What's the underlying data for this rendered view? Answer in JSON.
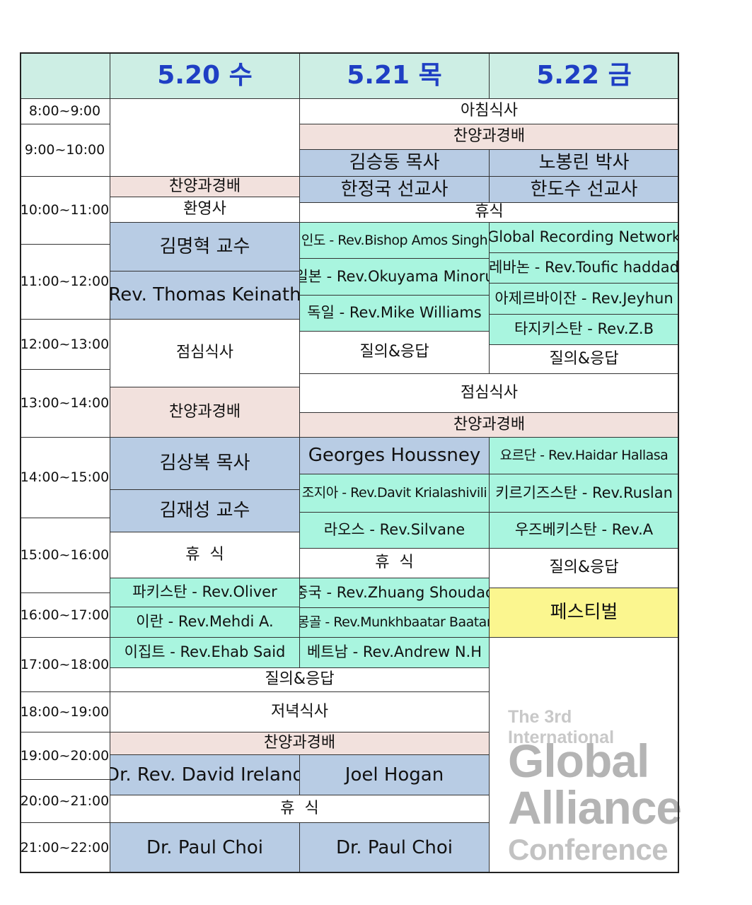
{
  "header": {
    "day1": "5.20 수",
    "day2": "5.21 목",
    "day3": "5.22 금"
  },
  "times": [
    "8:00~9:00",
    "9:00~10:00",
    "10:00~11:00",
    "11:00~12:00",
    "12:00~13:00",
    "13:00~14:00",
    "14:00~15:00",
    "15:00~16:00",
    "16:00~17:00",
    "17:00~18:00",
    "18:00~19:00",
    "19:00~20:00",
    "20:00~21:00",
    "21:00~22:00"
  ],
  "sessions": {
    "breakfast": "아침식사",
    "worship_d23_morning": "찬양과경배",
    "d2_kim_seungdong": "김승동 목사",
    "d3_no_bongrin": "노봉린 박사",
    "d1_worship_10": "찬양과경배",
    "d2_han_jeongguk": "한정국 선교사",
    "d3_han_dosu": "한도수 선교사",
    "d1_welcome": "환영사",
    "d23_break_1030": "휴식",
    "d1_kim_myeonghyeok": "김명혁 교수",
    "d2_india": "인도 - Rev.Bishop Amos Singh",
    "d3_grn": "Global Recording Network",
    "d3_lebanon": "레바논 - Rev.Toufic haddad",
    "d1_thomas_keinath": "Rev. Thomas Keinath",
    "d2_japan": "일본 - Rev.Okuyama Minoru",
    "d3_azerbaijan": "아제르바이잔 - Rev.Jeyhun",
    "d2_germany": "독일 - Rev.Mike Williams",
    "d3_tajikistan": "타지키스탄 - Rev.Z.B",
    "d1_lunch": "점심식사",
    "d2_qa_1": "질의&응답",
    "d3_qa_1": "질의&응답",
    "d23_lunch": "점심식사",
    "d1_worship_13": "찬양과경배",
    "d23_worship_14": "찬양과경배",
    "d1_kim_sangbok": "김상복 목사",
    "d2_georges": "Georges Houssney",
    "d3_jordan": "요르단 - Rev.Haidar Hallasa",
    "d1_kim_jaeseong": "김재성 교수",
    "d2_georgia": "조지아 - Rev.Davit Krialashivili",
    "d3_kyrgyzstan": "키르기즈스탄 - Rev.Ruslan",
    "d2_laos": "라오스 - Rev.Silvane",
    "d3_uzbekistan": "우즈베키스탄 - Rev.A",
    "d1_break_15": "휴  식",
    "d2_break_15": "휴  식",
    "d3_qa_2": "질의&응답",
    "d1_pakistan": "파키스탄 - Rev.Oliver",
    "d2_china": "중국 - Rev.Zhuang Shoudao",
    "d3_festival": "페스티벌",
    "d1_iran": "이란 - Rev.Mehdi A.",
    "d2_mongolia": "몽골 - Rev.Munkhbaatar Baatar",
    "d1_egypt": "이집트 - Rev.Ehab Said",
    "d2_vietnam": "베트남 - Rev.Andrew N.H",
    "d12_qa": "질의&응답",
    "d12_dinner": "저녁식사",
    "d12_worship_19": "찬양과경배",
    "d1_david_ireland": "Dr. Rev. David Ireland",
    "d2_joel_hogan": "Joel Hogan",
    "d12_break_20": "휴  식",
    "d1_paul_choi": "Dr. Paul Choi",
    "d2_paul_choi": "Dr. Paul Choi"
  },
  "logo": {
    "line1": "The 3rd International",
    "line2": "Global",
    "line3": "Alliance",
    "line4": "Conference"
  },
  "colors": {
    "header_bg": "#cdeee4",
    "header_text": "#1f3fc4",
    "worship_pink": "#f2e1dd",
    "speaker_blue": "#b8cce4",
    "country_mint": "#a9f5df",
    "festival_yellow": "#fbf68f",
    "logo_gray": "#b4b4b4"
  }
}
